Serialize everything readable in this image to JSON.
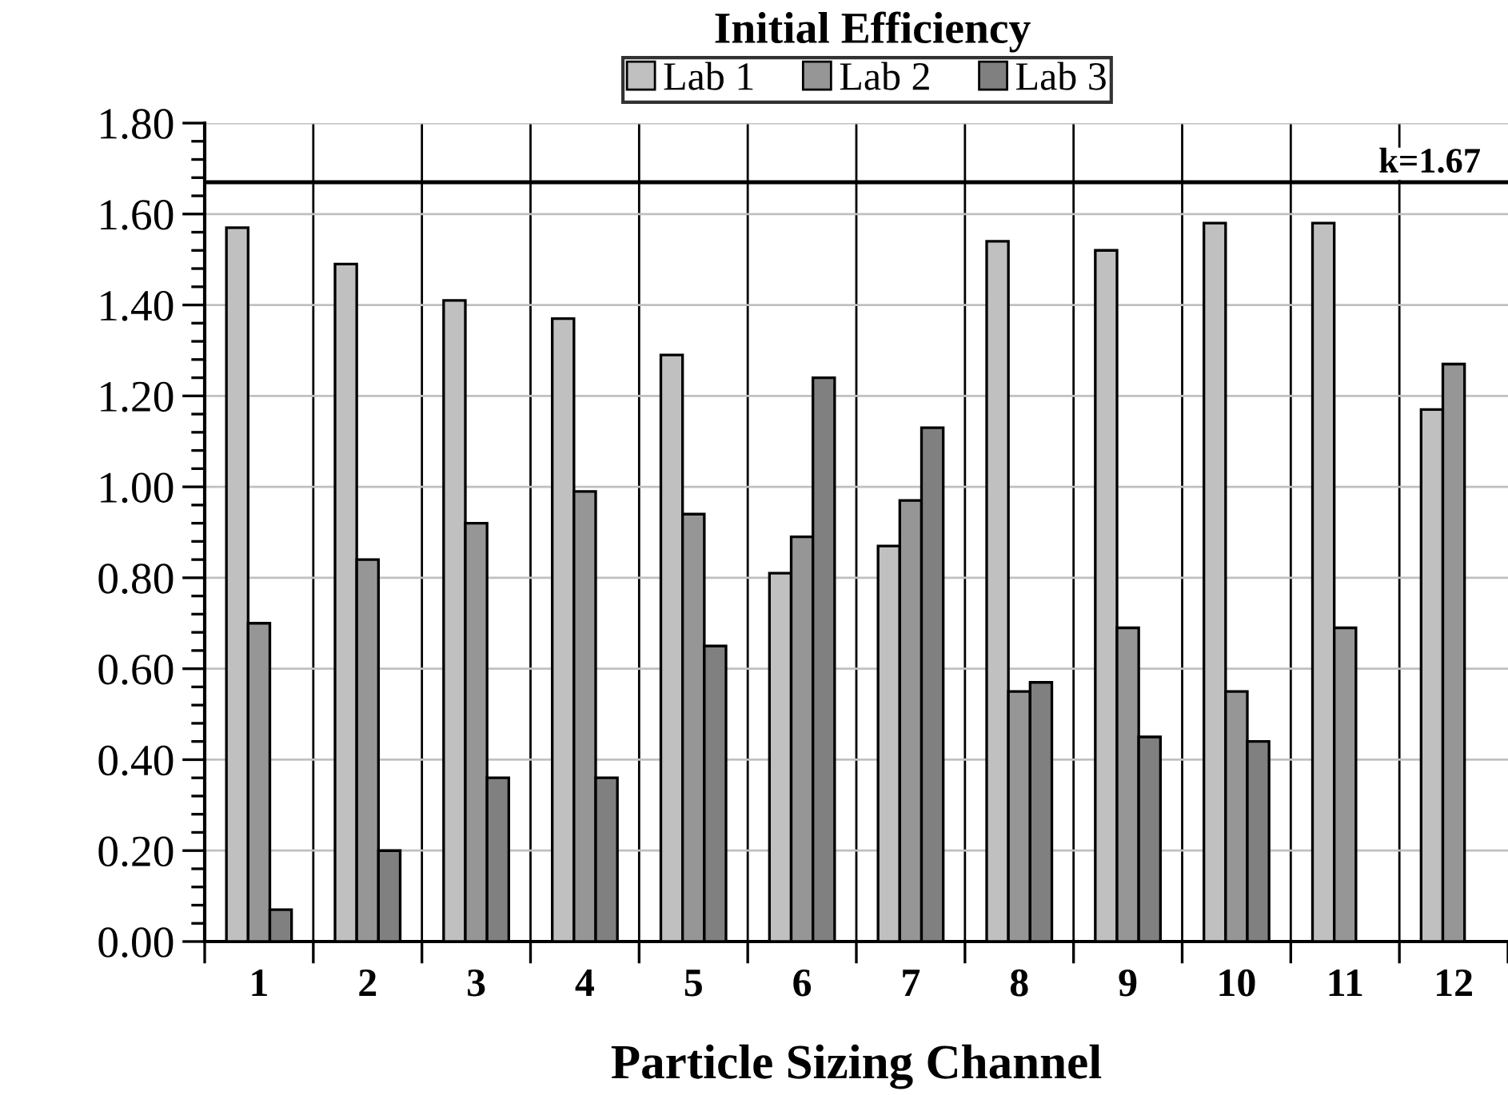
{
  "chart_data": {
    "type": "bar",
    "title": "Initial Efficiency",
    "xlabel": "Particle Sizing Channel",
    "categories": [
      "1",
      "2",
      "3",
      "4",
      "5",
      "6",
      "7",
      "8",
      "9",
      "10",
      "11",
      "12"
    ],
    "series": [
      {
        "name": "Lab 1",
        "color": "#c0c0c0",
        "values": [
          1.57,
          1.49,
          1.41,
          1.37,
          1.29,
          0.81,
          0.87,
          1.54,
          1.52,
          1.58,
          1.58,
          1.17
        ]
      },
      {
        "name": "Lab 2",
        "color": "#969696",
        "values": [
          0.7,
          0.84,
          0.92,
          0.99,
          0.94,
          0.89,
          0.97,
          0.55,
          0.69,
          0.55,
          0.69,
          1.27
        ]
      },
      {
        "name": "Lab 3",
        "color": "#808080",
        "values": [
          0.07,
          0.2,
          0.36,
          0.36,
          0.65,
          1.24,
          1.13,
          0.57,
          0.45,
          0.44,
          null,
          null
        ]
      }
    ],
    "ylim": [
      0,
      1.8
    ],
    "yticks": [
      {
        "value": 0,
        "label": "0.00"
      },
      {
        "value": 0.2,
        "label": "0.20"
      },
      {
        "value": 0.4,
        "label": "0.40"
      },
      {
        "value": 0.6,
        "label": "0.60"
      },
      {
        "value": 0.8,
        "label": "0.80"
      },
      {
        "value": 1.0,
        "label": "1.00"
      },
      {
        "value": 1.2,
        "label": "1.20"
      },
      {
        "value": 1.4,
        "label": "1.40"
      },
      {
        "value": 1.6,
        "label": "1.60"
      },
      {
        "value": 1.8,
        "label": "1.80"
      }
    ],
    "ref_lines": [
      {
        "axis": "y",
        "value": 1.67,
        "label": "k=1.67",
        "color": "#000000"
      }
    ],
    "grid": true,
    "legend": "top"
  }
}
